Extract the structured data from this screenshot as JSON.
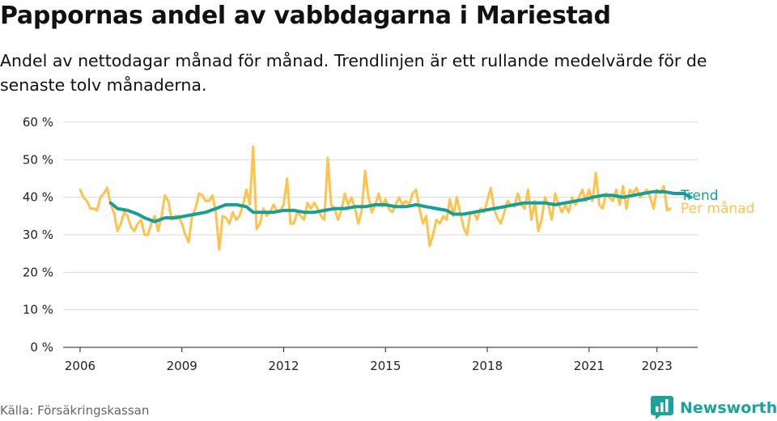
{
  "header": {
    "title": "Pappornas andel av vabbdagarna i Mariestad",
    "subtitle": "Andel av nettodagar månad för månad. Trendlinjen är ett rullande medelvärde för de senaste tolv månaderna."
  },
  "footer": {
    "source": "Källa: Försäkringskassan",
    "brand": "Newsworthy",
    "brand_icon": "bar-chart-bubble-icon",
    "brand_color": "#1aa39b"
  },
  "chart_data": {
    "type": "line",
    "title": "Pappornas andel av vabbdagarna i Mariestad",
    "xlabel": "",
    "ylabel": "",
    "xlim": [
      2005.5,
      2024.2
    ],
    "ylim": [
      0,
      60
    ],
    "x_ticks": [
      2006,
      2009,
      2012,
      2015,
      2018,
      2021,
      2023
    ],
    "y_ticks": [
      0,
      10,
      20,
      30,
      40,
      50,
      60
    ],
    "y_tick_labels": [
      "0 %",
      "10 %",
      "20 %",
      "30 %",
      "40 %",
      "50 %",
      "60 %"
    ],
    "grid": "horizontal",
    "legend": "inline labels at right end of lines",
    "series": [
      {
        "name": "Per månad",
        "color": "#ffc34d",
        "points": [
          [
            2006.0,
            42
          ],
          [
            2006.1,
            40
          ],
          [
            2006.2,
            39
          ],
          [
            2006.3,
            37
          ],
          [
            2006.4,
            37
          ],
          [
            2006.5,
            36.5
          ],
          [
            2006.6,
            40
          ],
          [
            2006.7,
            41
          ],
          [
            2006.8,
            42.5
          ],
          [
            2006.9,
            38
          ],
          [
            2007.0,
            36
          ],
          [
            2007.1,
            31
          ],
          [
            2007.2,
            33
          ],
          [
            2007.3,
            36
          ],
          [
            2007.4,
            35
          ],
          [
            2007.5,
            32
          ],
          [
            2007.6,
            31
          ],
          [
            2007.7,
            33
          ],
          [
            2007.8,
            34
          ],
          [
            2007.9,
            30
          ],
          [
            2008.0,
            30
          ],
          [
            2008.1,
            33
          ],
          [
            2008.2,
            35
          ],
          [
            2008.3,
            31
          ],
          [
            2008.4,
            35
          ],
          [
            2008.5,
            40.5
          ],
          [
            2008.6,
            39
          ],
          [
            2008.7,
            34
          ],
          [
            2008.8,
            35
          ],
          [
            2008.9,
            35
          ],
          [
            2009.0,
            33
          ],
          [
            2009.1,
            30
          ],
          [
            2009.2,
            28
          ],
          [
            2009.3,
            35
          ],
          [
            2009.4,
            37
          ],
          [
            2009.5,
            41
          ],
          [
            2009.6,
            40.5
          ],
          [
            2009.7,
            39
          ],
          [
            2009.8,
            39
          ],
          [
            2009.9,
            40.5
          ],
          [
            2010.0,
            36
          ],
          [
            2010.1,
            26
          ],
          [
            2010.2,
            35
          ],
          [
            2010.3,
            34.5
          ],
          [
            2010.4,
            33
          ],
          [
            2010.5,
            36
          ],
          [
            2010.6,
            34
          ],
          [
            2010.7,
            35
          ],
          [
            2010.8,
            38
          ],
          [
            2010.9,
            42
          ],
          [
            2011.0,
            38
          ],
          [
            2011.1,
            53.5
          ],
          [
            2011.2,
            31.5
          ],
          [
            2011.3,
            33
          ],
          [
            2011.4,
            37
          ],
          [
            2011.5,
            35
          ],
          [
            2011.6,
            36
          ],
          [
            2011.7,
            38
          ],
          [
            2011.8,
            36.5
          ],
          [
            2011.9,
            36.5
          ],
          [
            2012.0,
            38
          ],
          [
            2012.1,
            45
          ],
          [
            2012.2,
            33
          ],
          [
            2012.3,
            33
          ],
          [
            2012.4,
            36
          ],
          [
            2012.5,
            35
          ],
          [
            2012.6,
            34
          ],
          [
            2012.7,
            38.5
          ],
          [
            2012.8,
            37
          ],
          [
            2012.9,
            38.5
          ],
          [
            2013.0,
            37
          ],
          [
            2013.1,
            35
          ],
          [
            2013.2,
            34
          ],
          [
            2013.3,
            50.5
          ],
          [
            2013.4,
            38
          ],
          [
            2013.5,
            37
          ],
          [
            2013.6,
            34
          ],
          [
            2013.7,
            36.5
          ],
          [
            2013.8,
            41
          ],
          [
            2013.9,
            38
          ],
          [
            2014.0,
            40
          ],
          [
            2014.1,
            37
          ],
          [
            2014.2,
            33
          ],
          [
            2014.3,
            36.5
          ],
          [
            2014.4,
            47
          ],
          [
            2014.5,
            40
          ],
          [
            2014.6,
            36
          ],
          [
            2014.7,
            38
          ],
          [
            2014.8,
            41
          ],
          [
            2014.9,
            37.5
          ],
          [
            2015.0,
            39.5
          ],
          [
            2015.1,
            37
          ],
          [
            2015.2,
            36
          ],
          [
            2015.3,
            38
          ],
          [
            2015.4,
            40
          ],
          [
            2015.5,
            38
          ],
          [
            2015.6,
            39
          ],
          [
            2015.7,
            38
          ],
          [
            2015.8,
            41
          ],
          [
            2015.9,
            42
          ],
          [
            2016.0,
            37
          ],
          [
            2016.1,
            33
          ],
          [
            2016.2,
            35
          ],
          [
            2016.3,
            27
          ],
          [
            2016.4,
            30
          ],
          [
            2016.5,
            34
          ],
          [
            2016.6,
            33
          ],
          [
            2016.7,
            35
          ],
          [
            2016.8,
            34
          ],
          [
            2016.9,
            39.5
          ],
          [
            2017.0,
            35
          ],
          [
            2017.1,
            40
          ],
          [
            2017.2,
            36
          ],
          [
            2017.3,
            32
          ],
          [
            2017.4,
            30
          ],
          [
            2017.5,
            36
          ],
          [
            2017.6,
            36
          ],
          [
            2017.7,
            34
          ],
          [
            2017.8,
            37
          ],
          [
            2017.9,
            36
          ],
          [
            2018.0,
            39
          ],
          [
            2018.1,
            42.5
          ],
          [
            2018.2,
            37
          ],
          [
            2018.3,
            34.5
          ],
          [
            2018.4,
            33
          ],
          [
            2018.5,
            36
          ],
          [
            2018.6,
            39
          ],
          [
            2018.7,
            38
          ],
          [
            2018.8,
            37.5
          ],
          [
            2018.9,
            41
          ],
          [
            2019.0,
            38
          ],
          [
            2019.1,
            37
          ],
          [
            2019.2,
            42
          ],
          [
            2019.3,
            34
          ],
          [
            2019.4,
            39
          ],
          [
            2019.5,
            31
          ],
          [
            2019.6,
            34
          ],
          [
            2019.7,
            40
          ],
          [
            2019.8,
            38
          ],
          [
            2019.9,
            34
          ],
          [
            2020.0,
            41
          ],
          [
            2020.1,
            38
          ],
          [
            2020.2,
            36
          ],
          [
            2020.3,
            38
          ],
          [
            2020.4,
            36
          ],
          [
            2020.5,
            40
          ],
          [
            2020.6,
            38
          ],
          [
            2020.7,
            40
          ],
          [
            2020.8,
            42
          ],
          [
            2020.9,
            39
          ],
          [
            2021.0,
            42
          ],
          [
            2021.1,
            39
          ],
          [
            2021.2,
            46.5
          ],
          [
            2021.3,
            38
          ],
          [
            2021.4,
            37
          ],
          [
            2021.5,
            41
          ],
          [
            2021.6,
            40
          ],
          [
            2021.7,
            39
          ],
          [
            2021.8,
            42
          ],
          [
            2021.9,
            38
          ],
          [
            2022.0,
            43
          ],
          [
            2022.1,
            37
          ],
          [
            2022.2,
            42
          ],
          [
            2022.3,
            41
          ],
          [
            2022.4,
            42.5
          ],
          [
            2022.5,
            40
          ],
          [
            2022.6,
            41
          ],
          [
            2022.7,
            42
          ],
          [
            2022.8,
            40
          ],
          [
            2022.9,
            37
          ],
          [
            2023.0,
            42
          ],
          [
            2023.1,
            41
          ],
          [
            2023.2,
            43
          ],
          [
            2023.3,
            36.5
          ],
          [
            2023.4,
            37
          ]
        ]
      },
      {
        "name": "Trend",
        "color": "#179e96",
        "points": [
          [
            2006.9,
            38.5
          ],
          [
            2007.1,
            37
          ],
          [
            2007.4,
            36.5
          ],
          [
            2007.7,
            35.5
          ],
          [
            2007.9,
            34.5
          ],
          [
            2008.2,
            33.5
          ],
          [
            2008.5,
            34.5
          ],
          [
            2008.8,
            34.5
          ],
          [
            2009.1,
            35
          ],
          [
            2009.4,
            35.5
          ],
          [
            2009.7,
            36
          ],
          [
            2010.0,
            37
          ],
          [
            2010.3,
            38
          ],
          [
            2010.6,
            38
          ],
          [
            2010.9,
            37.5
          ],
          [
            2011.1,
            36
          ],
          [
            2011.4,
            36
          ],
          [
            2011.7,
            36
          ],
          [
            2012.0,
            36.5
          ],
          [
            2012.3,
            36.5
          ],
          [
            2012.6,
            36
          ],
          [
            2012.9,
            36
          ],
          [
            2013.2,
            36.5
          ],
          [
            2013.5,
            37
          ],
          [
            2013.8,
            37
          ],
          [
            2014.1,
            37.5
          ],
          [
            2014.4,
            37.5
          ],
          [
            2014.7,
            38
          ],
          [
            2015.0,
            38
          ],
          [
            2015.3,
            37.5
          ],
          [
            2015.6,
            37.5
          ],
          [
            2015.9,
            38
          ],
          [
            2016.2,
            37.5
          ],
          [
            2016.5,
            37
          ],
          [
            2016.8,
            36.5
          ],
          [
            2017.0,
            35.5
          ],
          [
            2017.3,
            35.5
          ],
          [
            2017.6,
            36
          ],
          [
            2017.9,
            36.5
          ],
          [
            2018.2,
            37
          ],
          [
            2018.5,
            37.5
          ],
          [
            2018.8,
            38
          ],
          [
            2019.1,
            38.5
          ],
          [
            2019.4,
            38.5
          ],
          [
            2019.7,
            38.5
          ],
          [
            2020.0,
            38
          ],
          [
            2020.3,
            38.5
          ],
          [
            2020.6,
            39
          ],
          [
            2020.9,
            39.5
          ],
          [
            2021.1,
            40
          ],
          [
            2021.4,
            40.5
          ],
          [
            2021.7,
            40.5
          ],
          [
            2022.0,
            40
          ],
          [
            2022.3,
            40.5
          ],
          [
            2022.6,
            41
          ],
          [
            2022.9,
            41.5
          ],
          [
            2023.2,
            41.5
          ],
          [
            2023.5,
            41
          ],
          [
            2023.8,
            41
          ],
          [
            2024.0,
            40
          ]
        ]
      }
    ]
  }
}
